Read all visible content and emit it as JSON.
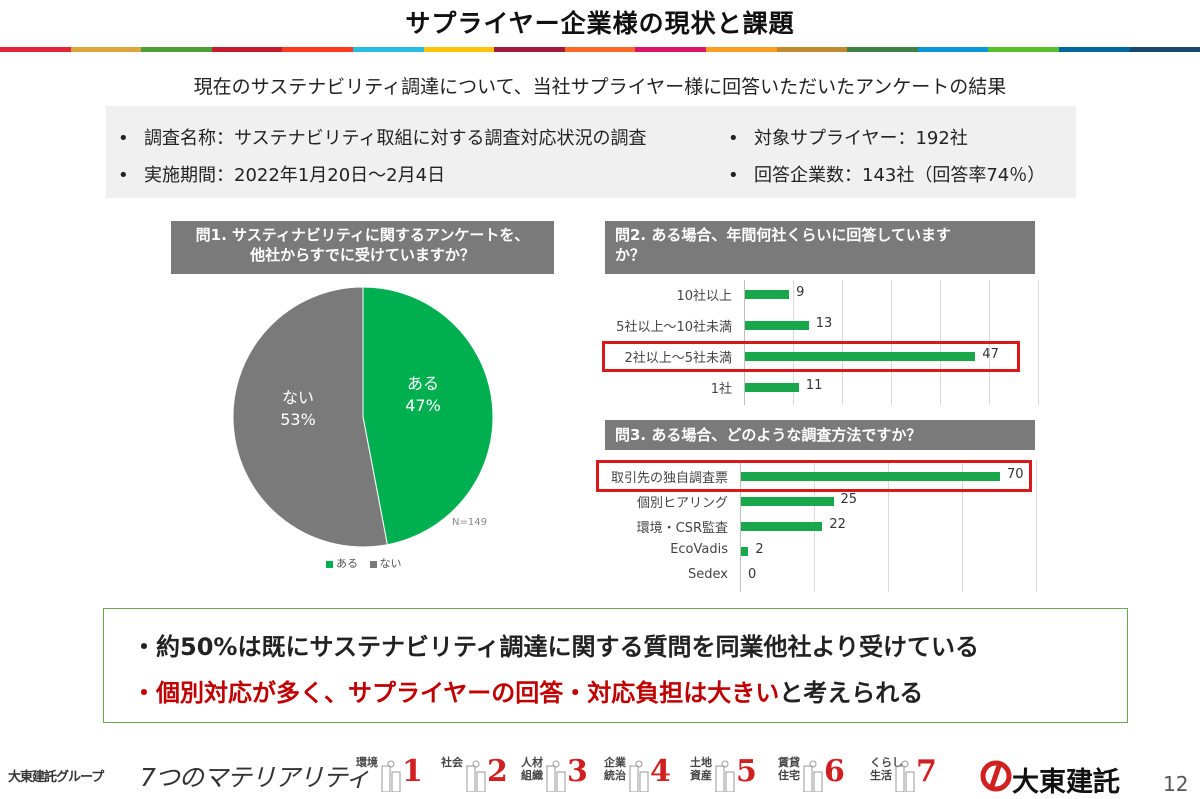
{
  "title": "サプライヤー企業様の現状と課題",
  "stripe_colors": [
    "#e5243b",
    "#dda63a",
    "#4c9f38",
    "#c5192d",
    "#ff3a21",
    "#26bde2",
    "#fcc30b",
    "#a21942",
    "#fd6925",
    "#dd1367",
    "#fd9d24",
    "#bf8b2e",
    "#3f7e44",
    "#0a97d9",
    "#56c02b",
    "#00689d",
    "#19486a"
  ],
  "subtitle": "現在のサステナビリティ調達について、当社サプライヤー様に回答いただいたアンケートの結果",
  "info": {
    "survey_name": "調査名称：サステナビリティ取組に対する調査対応状況の調査",
    "period": "実施期間：2022年1月20日～2月4日",
    "target": "対象サプライヤー：192社",
    "respondents": "回答企業数：143社（回答率74％）",
    "bullet": "•"
  },
  "q1": {
    "heading_line1": "問1. サスティナビリティに関するアンケートを、",
    "heading_line2": "他社からすでに受けていますか？",
    "n_label": "N=149",
    "legend": [
      "ある",
      "ない"
    ],
    "colors": [
      "#00b050",
      "#7a7a7a"
    ]
  },
  "q2": {
    "heading_line1": "問2. ある場合、年間何社くらいに回答しています",
    "heading_line2": "か？"
  },
  "q3": {
    "heading": "問3. ある場合、どのような調査方法ですか？"
  },
  "chart_data": [
    {
      "type": "pie",
      "categories": [
        "ある",
        "ない"
      ],
      "values": [
        47,
        53
      ],
      "value_labels": [
        "47%",
        "53%"
      ],
      "legend_position": "bottom"
    },
    {
      "type": "bar",
      "orientation": "horizontal",
      "categories": [
        "10社以上",
        "5社以上～10社未満",
        "2社以上～5社未満",
        "1社"
      ],
      "values": [
        9,
        13,
        47,
        11
      ],
      "highlight": "2社以上～5社未満",
      "grid": true
    },
    {
      "type": "bar",
      "orientation": "horizontal",
      "categories": [
        "取引先の独自調査票",
        "個別ヒアリング",
        "環境・CSR監査",
        "EcoVadis",
        "Sedex"
      ],
      "values": [
        70,
        25,
        22,
        2,
        0
      ],
      "highlight": "取引先の独自調査票",
      "grid": true
    }
  ],
  "conclusion": {
    "line1": "・約50%は既にサステナビリティ調達に関する質問を同業他社より受けている",
    "line2_prefix": "・",
    "line2_red": "個別対応が多く、サプライヤーの回答・対応負担は大きい",
    "line2_suffix": "と考えられる",
    "accent_red": "#c00000"
  },
  "footer": {
    "group": "大東建託グループ",
    "seven": "7つのマテリアリティ",
    "materialities": [
      {
        "label": "環境",
        "number": "1"
      },
      {
        "label": "社会",
        "number": "2"
      },
      {
        "label": "人材\n組織",
        "number": "3"
      },
      {
        "label": "企業\n統治",
        "number": "4"
      },
      {
        "label": "土地\n資産",
        "number": "5"
      },
      {
        "label": "賃貸\n住宅",
        "number": "6"
      },
      {
        "label": "くらし\n生活",
        "number": "7"
      }
    ],
    "logo": "大東建託",
    "page": "12"
  }
}
